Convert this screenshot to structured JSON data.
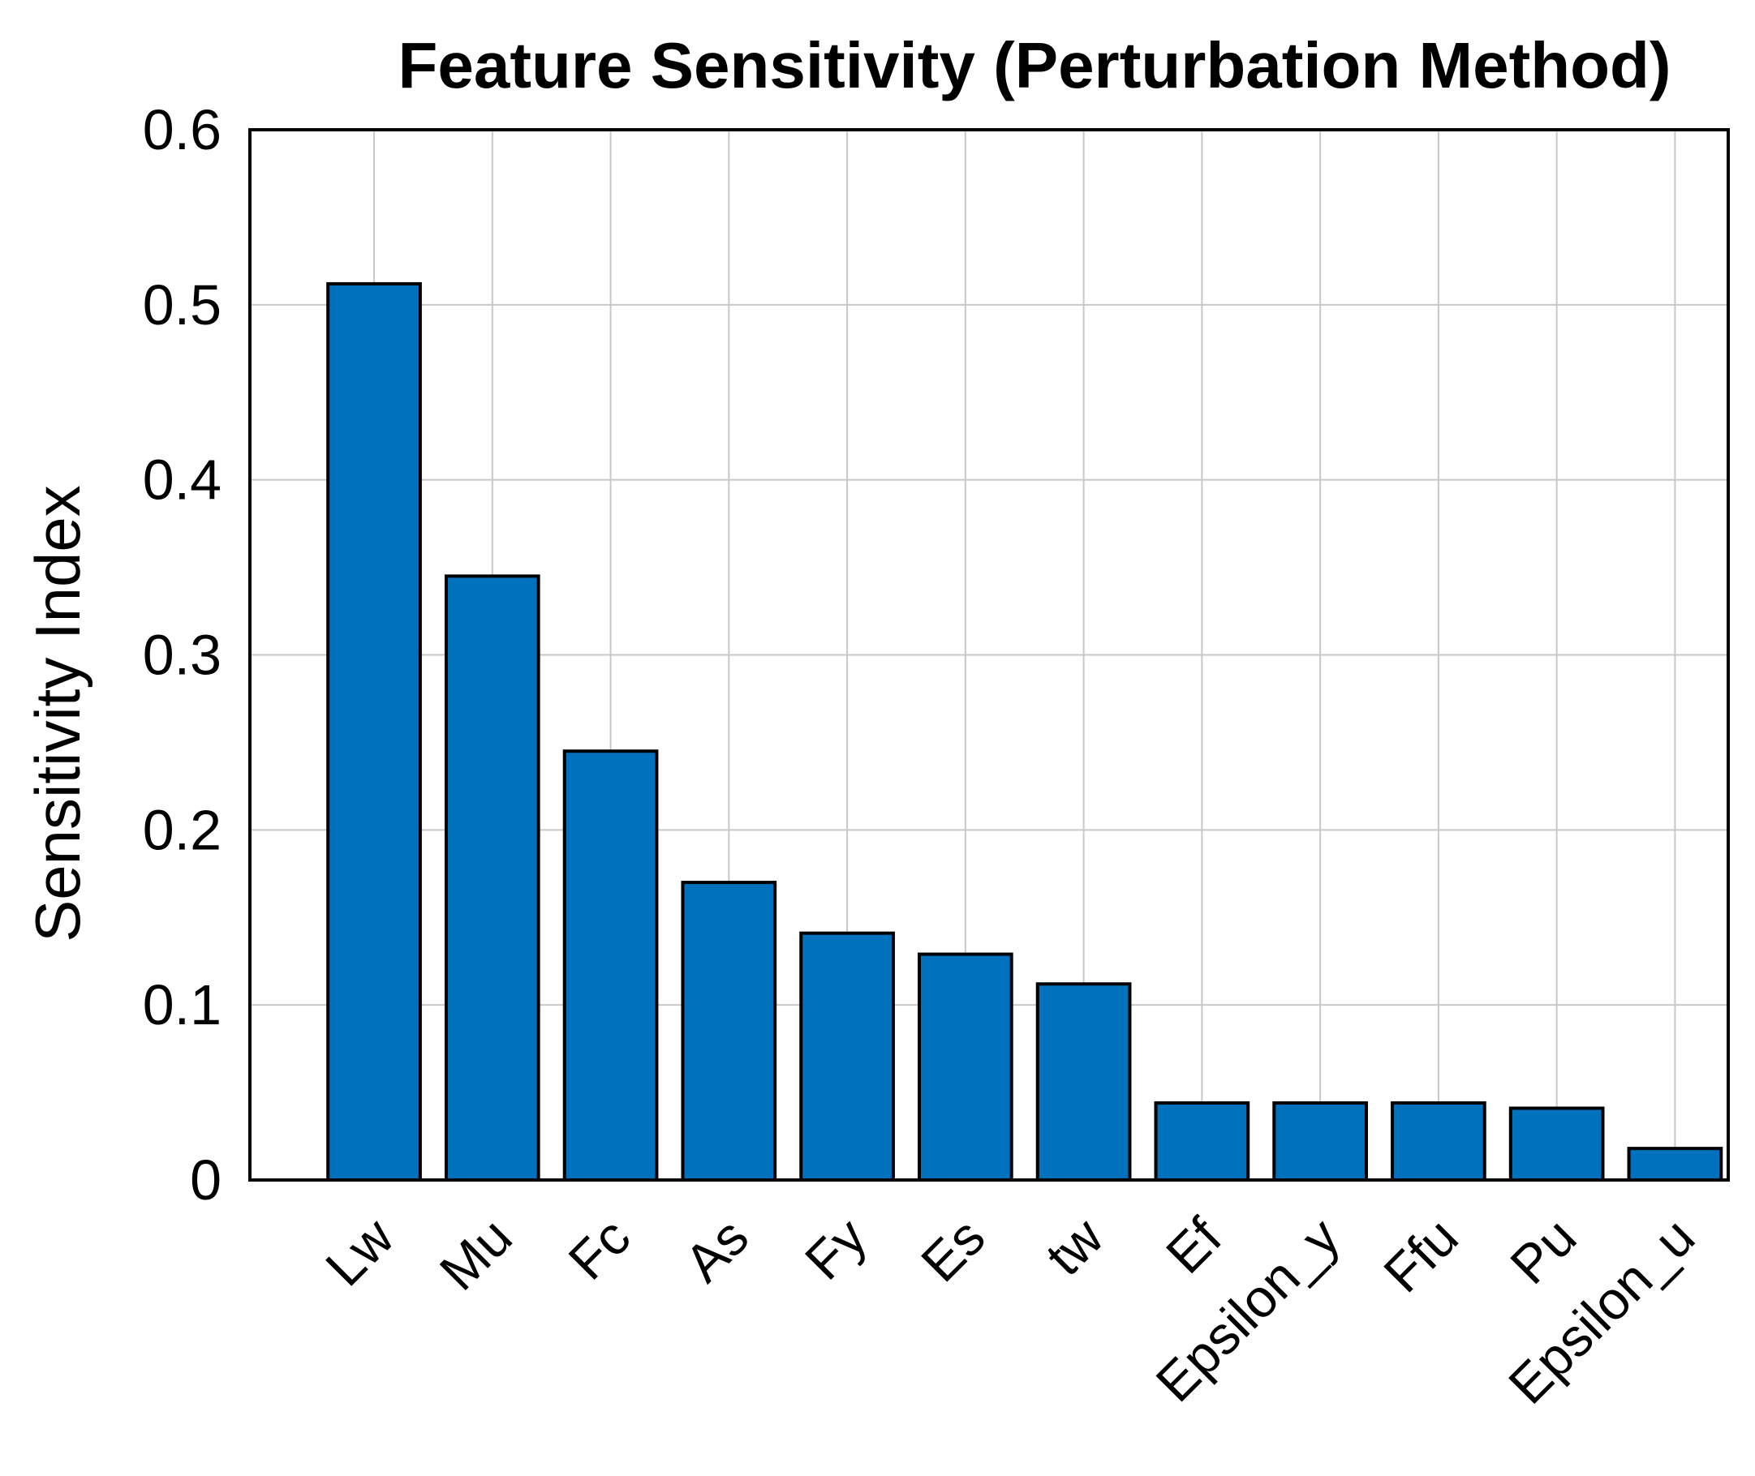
{
  "chart_data": {
    "type": "bar",
    "title": "Feature Sensitivity (Perturbation Method)",
    "xlabel": "",
    "ylabel": "Sensitivity Index",
    "categories": [
      "Lw",
      "Mu",
      "Fc",
      "As",
      "Fy",
      "Es",
      "tw",
      "Ef",
      "Epsilon_y",
      "Ffu",
      "Pu",
      "Epsilon_u"
    ],
    "values": [
      0.512,
      0.345,
      0.245,
      0.17,
      0.141,
      0.129,
      0.112,
      0.044,
      0.044,
      0.044,
      0.041,
      0.018
    ],
    "ylim": [
      0,
      0.6
    ],
    "yticks": [
      "0",
      "0.1",
      "0.2",
      "0.3",
      "0.4",
      "0.5",
      "0.6"
    ],
    "grid": true,
    "bar_color": "#0072BD"
  }
}
